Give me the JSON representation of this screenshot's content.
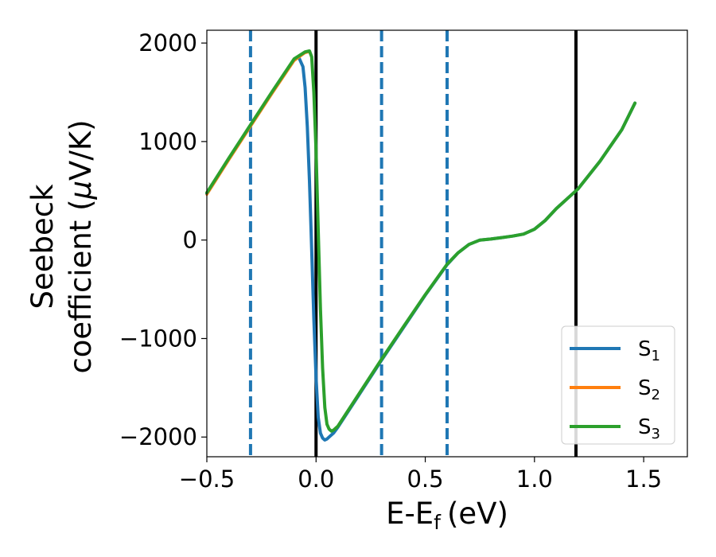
{
  "chart_data": {
    "type": "line",
    "xlabel": "E-E",
    "xlabel_sub": "f",
    "xlabel_unit": "(eV)",
    "ylabel_line1": "Seebeck",
    "ylabel_line2": "coefficient  (",
    "ylabel_mu": "μ",
    "ylabel_unit": "V/K)",
    "xlim": [
      -0.5,
      1.7
    ],
    "ylim": [
      -2200,
      2130
    ],
    "x_ticks": [
      {
        "value": -0.5,
        "label": "−0.5"
      },
      {
        "value": 0.0,
        "label": "0.0"
      },
      {
        "value": 0.5,
        "label": "0.5"
      },
      {
        "value": 1.0,
        "label": "1.0"
      },
      {
        "value": 1.5,
        "label": "1.5"
      }
    ],
    "y_ticks": [
      {
        "value": 2000,
        "label": "2000"
      },
      {
        "value": 1000,
        "label": "1000"
      },
      {
        "value": 0,
        "label": "0"
      },
      {
        "value": -1000,
        "label": "−1000"
      },
      {
        "value": -2000,
        "label": "−2000"
      }
    ],
    "vlines_solid": [
      0.0,
      1.19
    ],
    "vlines_dashed": [
      -0.3,
      0.3,
      0.6
    ],
    "legend_position": "lower-right",
    "grid": false,
    "series": [
      {
        "name": "S",
        "sub": "1",
        "color": "#1f77b4",
        "x": [
          -0.5,
          -0.4,
          -0.3,
          -0.2,
          -0.1,
          -0.08,
          -0.06,
          -0.05,
          -0.04,
          -0.03,
          -0.02,
          -0.01,
          0.0,
          0.01,
          0.02,
          0.03,
          0.04,
          0.05,
          0.06,
          0.08,
          0.1,
          0.2,
          0.3,
          0.4,
          0.5,
          0.6,
          0.65,
          0.7,
          0.75,
          0.8,
          0.85,
          0.9,
          0.95,
          1.0,
          1.05,
          1.1,
          1.15,
          1.2,
          1.3,
          1.4,
          1.46
        ],
        "y": [
          470,
          820,
          1160,
          1500,
          1830,
          1860,
          1760,
          1550,
          1150,
          600,
          -100,
          -800,
          -1400,
          -1800,
          -1960,
          -2010,
          -2030,
          -2020,
          -2000,
          -1960,
          -1900,
          -1560,
          -1220,
          -890,
          -560,
          -250,
          -130,
          -45,
          0,
          10,
          25,
          40,
          60,
          110,
          200,
          320,
          420,
          520,
          800,
          1120,
          1390
        ]
      },
      {
        "name": "S",
        "sub": "2",
        "color": "#ff7f0e",
        "x": [
          -0.5,
          -0.4,
          -0.3,
          -0.2,
          -0.1,
          -0.05,
          -0.03,
          -0.02,
          -0.01,
          0.0,
          0.01,
          0.02,
          0.03,
          0.04,
          0.05,
          0.06,
          0.07,
          0.08,
          0.1,
          0.2,
          0.3,
          0.4,
          0.5,
          0.6,
          0.65,
          0.7,
          0.75,
          0.8,
          0.85,
          0.9,
          0.95,
          1.0,
          1.05,
          1.1,
          1.15,
          1.2,
          1.3,
          1.4,
          1.46
        ],
        "y": [
          460,
          810,
          1150,
          1490,
          1820,
          1900,
          1910,
          1850,
          1500,
          900,
          100,
          -700,
          -1300,
          -1700,
          -1870,
          -1920,
          -1940,
          -1930,
          -1890,
          -1550,
          -1210,
          -880,
          -555,
          -245,
          -130,
          -45,
          0,
          10,
          25,
          40,
          60,
          110,
          200,
          320,
          420,
          520,
          800,
          1120,
          1390
        ]
      },
      {
        "name": "S",
        "sub": "3",
        "color": "#2ca02c",
        "x": [
          -0.5,
          -0.4,
          -0.3,
          -0.2,
          -0.1,
          -0.05,
          -0.03,
          -0.02,
          -0.01,
          0.0,
          0.01,
          0.02,
          0.03,
          0.04,
          0.05,
          0.06,
          0.07,
          0.08,
          0.1,
          0.2,
          0.3,
          0.4,
          0.5,
          0.6,
          0.65,
          0.7,
          0.75,
          0.8,
          0.85,
          0.9,
          0.95,
          1.0,
          1.05,
          1.1,
          1.15,
          1.2,
          1.3,
          1.4,
          1.46
        ],
        "y": [
          480,
          830,
          1170,
          1510,
          1840,
          1910,
          1920,
          1860,
          1500,
          900,
          100,
          -700,
          -1300,
          -1700,
          -1870,
          -1920,
          -1940,
          -1930,
          -1890,
          -1550,
          -1210,
          -880,
          -555,
          -245,
          -130,
          -45,
          0,
          10,
          25,
          40,
          60,
          110,
          200,
          320,
          420,
          520,
          800,
          1120,
          1390
        ]
      }
    ]
  }
}
